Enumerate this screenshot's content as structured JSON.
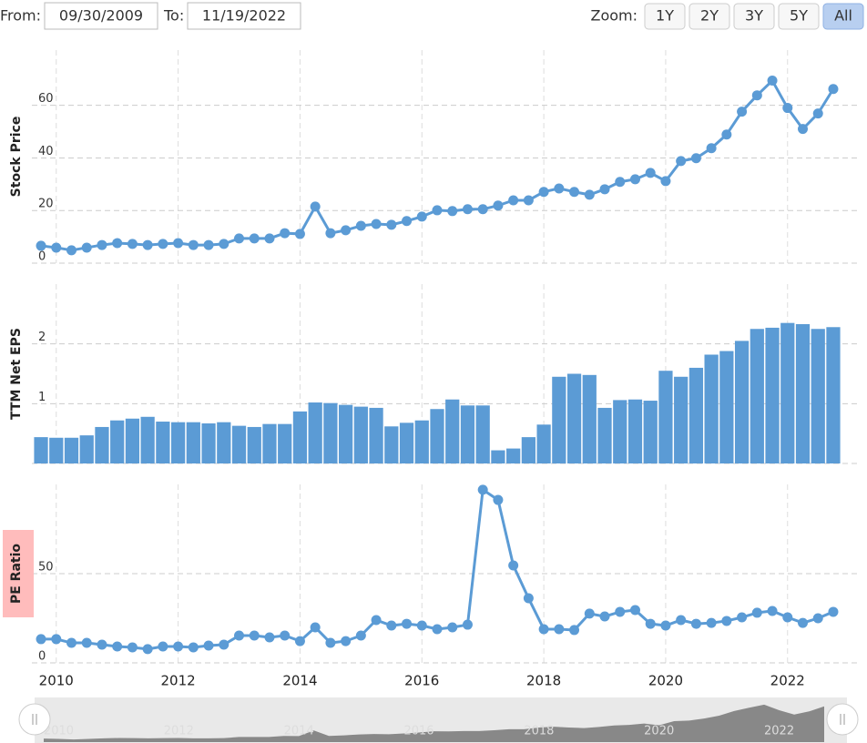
{
  "controls": {
    "from_label": "From:",
    "from": "09/30/2009",
    "to_label": "To:",
    "to": "11/19/2022",
    "zoom_label": "Zoom:",
    "zoom": [
      "1Y",
      "2Y",
      "3Y",
      "5Y",
      "All"
    ],
    "zoom_active": "All"
  },
  "chart_data": [
    {
      "type": "line",
      "y_label": "Stock Price",
      "color": "#5b9bd5",
      "grid": true,
      "markers": true,
      "x": [
        2009.75,
        2010,
        2010.25,
        2010.5,
        2010.75,
        2011,
        2011.25,
        2011.5,
        2011.75,
        2012,
        2012.25,
        2012.5,
        2012.75,
        2013,
        2013.25,
        2013.5,
        2013.75,
        2014,
        2014.25,
        2014.5,
        2014.75,
        2015,
        2015.25,
        2015.5,
        2015.75,
        2016,
        2016.25,
        2016.5,
        2016.75,
        2017,
        2017.25,
        2017.5,
        2017.75,
        2018,
        2018.25,
        2018.5,
        2018.75,
        2019,
        2019.25,
        2019.5,
        2019.75,
        2020,
        2020.25,
        2020.5,
        2020.75,
        2021,
        2021.25,
        2021.5,
        2021.75,
        2022,
        2022.25,
        2022.5,
        2022.75
      ],
      "values": [
        6.6,
        5.9,
        4.9,
        5.9,
        6.9,
        7.6,
        7.3,
        6.9,
        7.3,
        7.6,
        6.9,
        6.9,
        7.3,
        9.4,
        9.4,
        9.4,
        11.4,
        11.1,
        21.5,
        11.4,
        12.5,
        14.2,
        14.9,
        14.6,
        16,
        17.7,
        20.1,
        19.8,
        20.5,
        20.5,
        21.9,
        23.9,
        23.9,
        27.1,
        28.4,
        27.1,
        26,
        28.1,
        30.9,
        31.9,
        34.3,
        31.2,
        38.8,
        39.9,
        43.7,
        48.9,
        57.6,
        63.8,
        69.4,
        59,
        51,
        56.9,
        66.2
      ],
      "xlim": [
        2009.6,
        2022.9
      ],
      "ylim": [
        0,
        81
      ],
      "yticks": [
        0,
        20,
        40,
        60
      ]
    },
    {
      "type": "bar",
      "y_label": "TTM Net EPS",
      "color": "#5b9bd5",
      "grid": true,
      "x": [
        2009.75,
        2010,
        2010.25,
        2010.5,
        2010.75,
        2011,
        2011.25,
        2011.5,
        2011.75,
        2012,
        2012.25,
        2012.5,
        2012.75,
        2013,
        2013.25,
        2013.5,
        2013.75,
        2014,
        2014.25,
        2014.5,
        2014.75,
        2015,
        2015.25,
        2015.5,
        2015.75,
        2016,
        2016.25,
        2016.5,
        2016.75,
        2017,
        2017.25,
        2017.5,
        2017.75,
        2018,
        2018.25,
        2018.5,
        2018.75,
        2019,
        2019.25,
        2019.5,
        2019.75,
        2020,
        2020.25,
        2020.5,
        2020.75,
        2021,
        2021.25,
        2021.5,
        2021.75,
        2022,
        2022.25,
        2022.5,
        2022.75
      ],
      "values": [
        0.44,
        0.43,
        0.43,
        0.47,
        0.61,
        0.72,
        0.75,
        0.78,
        0.7,
        0.69,
        0.69,
        0.67,
        0.69,
        0.63,
        0.61,
        0.66,
        0.66,
        0.87,
        1.02,
        1.01,
        0.98,
        0.95,
        0.93,
        0.62,
        0.68,
        0.72,
        0.91,
        1.07,
        0.97,
        0.97,
        0.22,
        0.25,
        0.44,
        0.65,
        1.45,
        1.5,
        1.48,
        0.93,
        1.06,
        1.07,
        1.05,
        1.55,
        1.45,
        1.6,
        1.82,
        1.88,
        2.05,
        2.25,
        2.27,
        2.35,
        2.33,
        2.25,
        2.28
      ],
      "xlim": [
        2009.6,
        2022.9
      ],
      "ylim": [
        0,
        3
      ],
      "yticks": [
        0,
        1,
        2
      ]
    },
    {
      "type": "line",
      "y_label": "PE Ratio",
      "color": "#5b9bd5",
      "grid": true,
      "markers": true,
      "label_highlight": "#ffbcbc",
      "x": [
        2009.75,
        2010,
        2010.25,
        2010.5,
        2010.75,
        2011,
        2011.25,
        2011.5,
        2011.75,
        2012,
        2012.25,
        2012.5,
        2012.75,
        2013,
        2013.25,
        2013.5,
        2013.75,
        2014,
        2014.25,
        2014.5,
        2014.75,
        2015,
        2015.25,
        2015.5,
        2015.75,
        2016,
        2016.25,
        2016.5,
        2016.75,
        2017,
        2017.25,
        2017.5,
        2017.75,
        2018,
        2018.25,
        2018.5,
        2018.75,
        2019,
        2019.25,
        2019.5,
        2019.75,
        2020,
        2020.25,
        2020.5,
        2020.75,
        2021,
        2021.25,
        2021.5,
        2021.75,
        2022,
        2022.25,
        2022.5,
        2022.75
      ],
      "values": [
        13.3,
        13.3,
        11.2,
        11.2,
        10.2,
        9.2,
        8.7,
        7.7,
        9.2,
        9.2,
        8.7,
        9.7,
        10.2,
        15.3,
        15.3,
        14.3,
        15.3,
        12.2,
        19.9,
        11.2,
        12.2,
        15.3,
        24,
        20.9,
        21.9,
        20.9,
        18.9,
        19.9,
        21.4,
        97,
        91.3,
        54.6,
        36.2,
        18.9,
        18.9,
        18.4,
        27.6,
        26,
        28.6,
        29.6,
        21.9,
        20.9,
        24,
        21.9,
        22.4,
        23.5,
        25.5,
        28.1,
        29.1,
        25.5,
        22.4,
        25,
        28.6
      ],
      "xlim": [
        2009.6,
        2022.9
      ],
      "ylim": [
        0,
        100
      ],
      "yticks": [
        0,
        50
      ],
      "xticks": [
        2010,
        2012,
        2014,
        2016,
        2018,
        2020,
        2022
      ]
    }
  ]
}
